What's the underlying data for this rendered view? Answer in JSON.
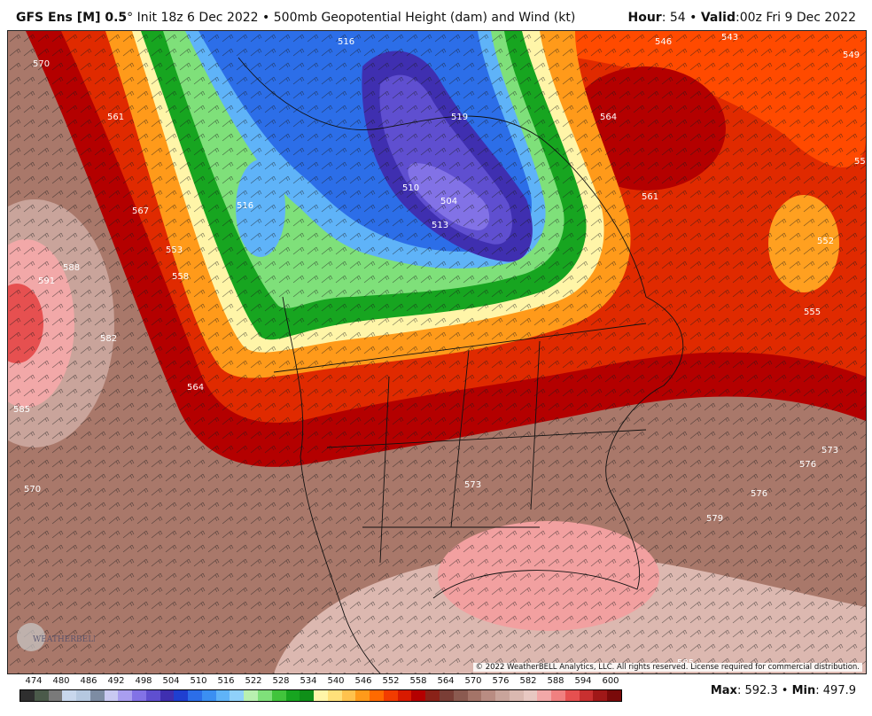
{
  "header": {
    "model": "GFS Ens [M] 0.5",
    "degree": "°",
    "init": " Init 18z 6 Dec 2022",
    "bullet": " • ",
    "product": "500mb Geopotential Height (dam) and Wind (kt)",
    "hour_label": "Hour",
    "hour_value": ": 54",
    "valid_label": "Valid",
    "valid_value": ":00z Fri 9 Dec 2022"
  },
  "map": {
    "copyright": "© 2022 WeatherBELL Analytics, LLC. All rights reserved. License required for commercial distribution.",
    "logo_text": "WEATHERBELL",
    "contour_labels": [
      "570",
      "561",
      "567",
      "558",
      "553",
      "564",
      "516",
      "510",
      "504",
      "513",
      "516",
      "519",
      "564",
      "561",
      "558",
      "552",
      "555",
      "573",
      "576",
      "588",
      "591",
      "582",
      "585",
      "570",
      "549",
      "546",
      "543",
      "573",
      "576",
      "579",
      "585"
    ]
  },
  "colorbar": {
    "labels": [
      "474",
      "480",
      "486",
      "492",
      "498",
      "504",
      "510",
      "516",
      "522",
      "528",
      "534",
      "540",
      "546",
      "552",
      "558",
      "564",
      "570",
      "576",
      "582",
      "588",
      "594",
      "600"
    ],
    "colors": [
      "#2f2f2f",
      "#4b5a4a",
      "#7a7a7a",
      "#c8d7ec",
      "#b5c8e0",
      "#7d8ca3",
      "#c9c9f2",
      "#a99ef0",
      "#8272e6",
      "#5f4fd0",
      "#3f2fb0",
      "#1f3fd0",
      "#2c6ee8",
      "#3b8ff2",
      "#5fb3f8",
      "#8fd0fa",
      "#b9f0b0",
      "#7fe07a",
      "#41c43c",
      "#17a520",
      "#0f8f18",
      "#fff5a8",
      "#ffe07a",
      "#ffc24d",
      "#ff9a1a",
      "#ff6a00",
      "#f23c00",
      "#d81a00",
      "#b40000",
      "#8a2218",
      "#7a3e36",
      "#8b5a50",
      "#a47468",
      "#b98c82",
      "#c9a49b",
      "#dab8b0",
      "#e8c8c2",
      "#f2a8a8",
      "#f08080",
      "#e65050",
      "#c83030",
      "#a01818",
      "#7a0a0a"
    ]
  },
  "stats": {
    "max_label": "Max",
    "max_value": ": 592.3",
    "sep": " • ",
    "min_label": "Min",
    "min_value": ": 497.9"
  }
}
